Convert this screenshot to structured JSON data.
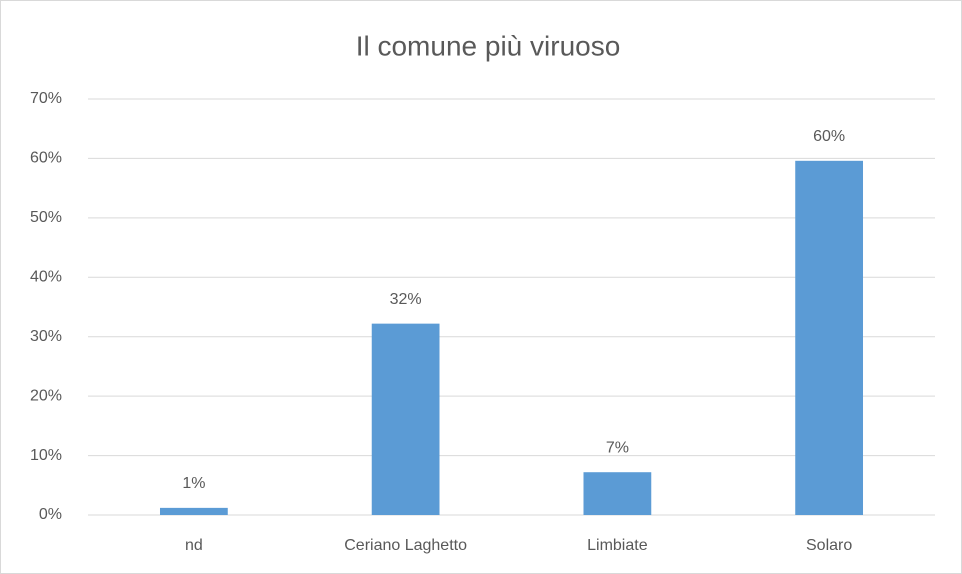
{
  "chart_data": {
    "type": "bar",
    "title": "Il comune più viruoso",
    "categories": [
      "nd",
      "Ceriano Laghetto",
      "Limbiate",
      "Solaro"
    ],
    "values": [
      1.2,
      32.2,
      7.2,
      59.6
    ],
    "value_labels": [
      "1%",
      "32%",
      "7%",
      "60%"
    ],
    "color": "#5b9bd5",
    "ylim": [
      0,
      70
    ],
    "yticks": [
      {
        "value": 0,
        "label": "0%"
      },
      {
        "value": 10,
        "label": "10%"
      },
      {
        "value": 20,
        "label": "20%"
      },
      {
        "value": 30,
        "label": "30%"
      },
      {
        "value": 40,
        "label": "40%"
      },
      {
        "value": 50,
        "label": "50%"
      },
      {
        "value": 60,
        "label": "60%"
      },
      {
        "value": 70,
        "label": "70%"
      }
    ],
    "grid": true
  }
}
